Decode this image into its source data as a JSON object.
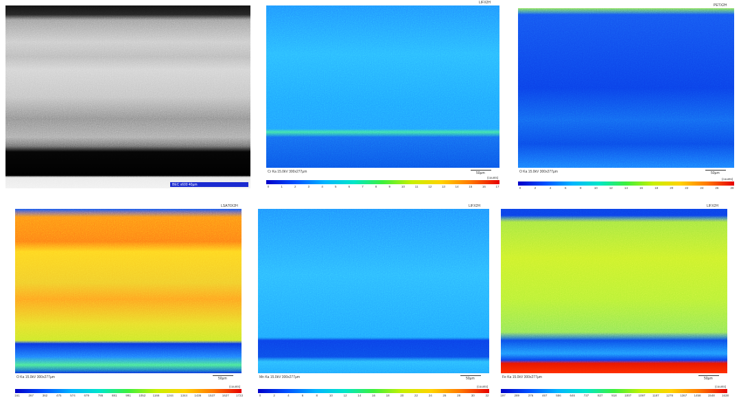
{
  "sem": {
    "label": "BEC x600 40µm"
  },
  "panels": [
    {
      "detector": "LIFX2H",
      "caption": "Cr Ka 15.0kV 300x277µm",
      "scale": "50µm",
      "unit": "(counts)",
      "ticks": [
        "0",
        "1",
        "2",
        "3",
        "4",
        "5",
        "6",
        "7",
        "8",
        "9",
        "10",
        "11",
        "12",
        "13",
        "14",
        "15",
        "16",
        "17"
      ]
    },
    {
      "detector": "PETX2H",
      "caption": "O Ka 15.0kV 300x277µm",
      "scale": "50µm",
      "unit": "(counts)",
      "ticks": [
        "0",
        "2",
        "4",
        "6",
        "8",
        "10",
        "12",
        "14",
        "16",
        "18",
        "20",
        "22",
        "24",
        "26",
        "28"
      ]
    },
    {
      "detector": "LSA70X2H",
      "caption": "O Ka 15.0kV 300x277µm",
      "scale": "50µm",
      "unit": "(counts)",
      "ticks": [
        "161",
        "267",
        "362",
        "475",
        "574",
        "679",
        "786",
        "881",
        "991",
        "1052",
        "1166",
        "1244",
        "1344",
        "1436",
        "1537",
        "1627",
        "1723"
      ]
    },
    {
      "detector": "LIFX2H",
      "caption": "Mn Ka 15.0kV 300x277µm",
      "scale": "50µm",
      "unit": "(counts)",
      "ticks": [
        "0",
        "2",
        "4",
        "6",
        "8",
        "10",
        "12",
        "14",
        "16",
        "18",
        "20",
        "22",
        "24",
        "26",
        "28",
        "30",
        "32"
      ]
    },
    {
      "detector": "LIFX2H",
      "caption": "Fe Ka 15.0kV 300x277µm",
      "scale": "50µm",
      "unit": "(counts)",
      "ticks": [
        "197",
        "289",
        "376",
        "467",
        "556",
        "646",
        "737",
        "827",
        "918",
        "1007",
        "1097",
        "1187",
        "1278",
        "1367",
        "1458",
        "1548",
        "1638"
      ]
    }
  ]
}
